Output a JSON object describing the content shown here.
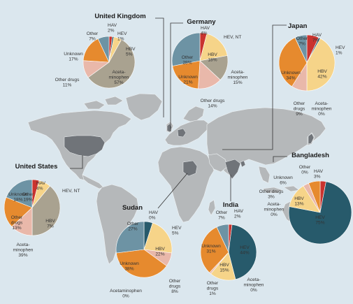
{
  "colors": {
    "ocean": "#dbe7ee",
    "land": "#b5b8ba",
    "land_border": "#eef2f4",
    "highlight": "#707479",
    "HAV": "#c9332e",
    "HEV": "#275a6b",
    "HBV": "#f6d489",
    "Acetaminophen": "#a9a290",
    "Other drugs": "#e9b8aa",
    "Unknown": "#e68a2e",
    "Other": "#6d93a4",
    "connector": "#333333"
  },
  "icons": {
    "country_highlight": "shaded-country-shape"
  },
  "chart_data": [
    {
      "type": "pie",
      "title": "United Kingdom",
      "slices": [
        {
          "name": "HAV",
          "label": "HAV",
          "value": 2
        },
        {
          "name": "HEV",
          "label": "HEV",
          "value": 1
        },
        {
          "name": "HBV",
          "label": "HBV",
          "value": 5
        },
        {
          "name": "Acetaminophen",
          "label": "Aceta-\nminophen",
          "value": 57
        },
        {
          "name": "Other drugs",
          "label": "Other drugs",
          "value": 11
        },
        {
          "name": "Unknown",
          "label": "Unknown",
          "value": 17
        },
        {
          "name": "Other",
          "label": "Other",
          "value": 7
        }
      ]
    },
    {
      "type": "pie",
      "title": "Germany",
      "slices": [
        {
          "name": "HAV",
          "label": "HAV",
          "value": 4
        },
        {
          "name": "HEV",
          "label": "HEV, NT",
          "value": null
        },
        {
          "name": "HBV",
          "label": "HBV",
          "value": 18
        },
        {
          "name": "Acetaminophen",
          "label": "Aceta-\nminophen",
          "value": 15
        },
        {
          "name": "Other drugs",
          "label": "Other drugs",
          "value": 14
        },
        {
          "name": "Unknown",
          "label": "Unknown",
          "value": 21
        },
        {
          "name": "Other",
          "label": "Other",
          "value": 28
        }
      ]
    },
    {
      "type": "pie",
      "title": "Japan",
      "slices": [
        {
          "name": "HAV",
          "label": "HAV",
          "value": 7
        },
        {
          "name": "HEV",
          "label": "HEV",
          "value": 1
        },
        {
          "name": "HBV",
          "label": "HBV",
          "value": 42
        },
        {
          "name": "Acetaminophen",
          "label": "Aceta-\nminophen",
          "value": 0
        },
        {
          "name": "Other drugs",
          "label": "Other\ndrugs",
          "value": 9
        },
        {
          "name": "Unknown",
          "label": "Unknown",
          "value": 34
        },
        {
          "name": "Other",
          "label": "Other",
          "value": 7
        }
      ]
    },
    {
      "type": "pie",
      "title": "United States",
      "slices": [
        {
          "name": "HAV",
          "label": "HAV",
          "value": 4
        },
        {
          "name": "HEV",
          "label": "HEV, NT",
          "value": null
        },
        {
          "name": "HBV",
          "label": "HBV",
          "value": 7
        },
        {
          "name": "Acetaminophen",
          "label": "Aceta-\nminophen",
          "value": 39
        },
        {
          "name": "Other drugs",
          "label": "Other\ndrugs",
          "value": 13
        },
        {
          "name": "Unknown",
          "label": "Unknown",
          "value": 18
        },
        {
          "name": "Other",
          "label": "Other",
          "value": 19
        }
      ]
    },
    {
      "type": "pie",
      "title": "Sudan",
      "slices": [
        {
          "name": "HAV",
          "label": "HAV",
          "value": 0
        },
        {
          "name": "HEV",
          "label": "HEV",
          "value": 5
        },
        {
          "name": "HBV",
          "label": "HBV",
          "value": 22
        },
        {
          "name": "Other drugs",
          "label": "Other\ndrugs",
          "value": 8
        },
        {
          "name": "Acetaminophen",
          "label": "Acetaminophen",
          "value": 0
        },
        {
          "name": "Unknown",
          "label": "Unknown",
          "value": 38
        },
        {
          "name": "Other",
          "label": "Other",
          "value": 27
        }
      ]
    },
    {
      "type": "pie",
      "title": "India",
      "slices": [
        {
          "name": "HAV",
          "label": "HAV",
          "value": 2
        },
        {
          "name": "HEV",
          "label": "HEV",
          "value": 44
        },
        {
          "name": "Acetaminophen",
          "label": "Aceta-\nminophen",
          "value": 0
        },
        {
          "name": "HBV",
          "label": "HBV",
          "value": 15
        },
        {
          "name": "Other drugs",
          "label": "Other\ndrugs",
          "value": 1
        },
        {
          "name": "Unknown",
          "label": "Unknown",
          "value": 31
        },
        {
          "name": "Other",
          "label": "Other",
          "value": 7
        }
      ]
    },
    {
      "type": "pie",
      "title": "Bangladesh",
      "slices": [
        {
          "name": "HAV",
          "label": "HAV",
          "value": 3
        },
        {
          "name": "HEV",
          "label": "HEV",
          "value": 75
        },
        {
          "name": "Acetaminophen",
          "label": "Aceta-\nminophen",
          "value": 0
        },
        {
          "name": "HBV",
          "label": "HBV",
          "value": 13
        },
        {
          "name": "Other drugs",
          "label": "Other drugs",
          "value": 3
        },
        {
          "name": "Unknown",
          "label": "Unknown",
          "value": 6
        },
        {
          "name": "Other",
          "label": "Other",
          "value": 0
        }
      ]
    }
  ]
}
